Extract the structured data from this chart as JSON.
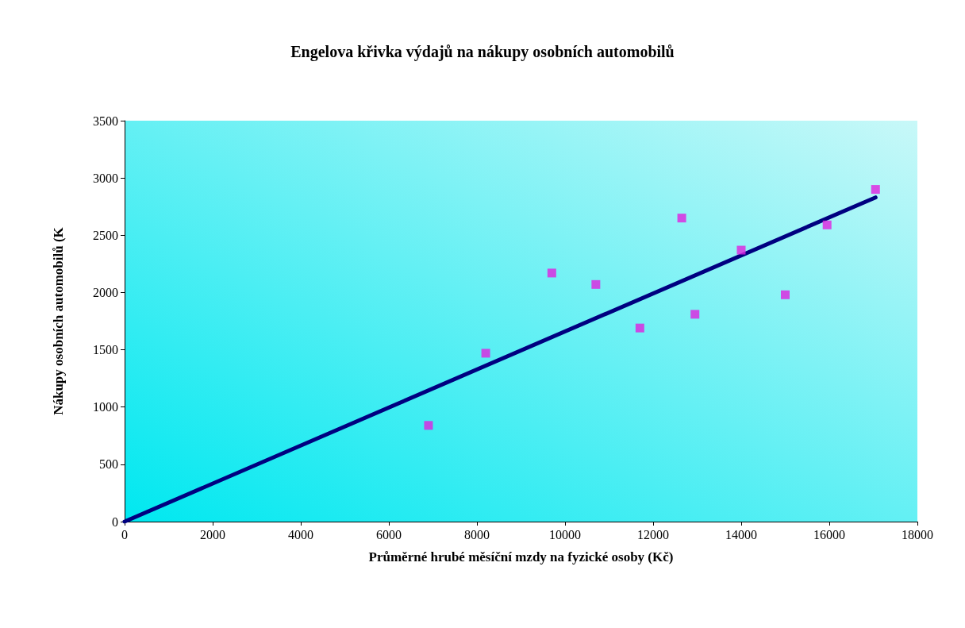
{
  "chart_data": {
    "type": "scatter",
    "title": "Engelova křivka výdajů na nákupy osobních automobilů",
    "xlabel": "Průměrné hrubé měsíční mzdy na fyzické osoby (Kč)",
    "ylabel": "Nákupy osobních automobilů (K",
    "series": [
      {
        "color": "#e020e0",
        "marker": "square",
        "x": [
          6900,
          8200,
          9700,
          10700,
          11700,
          12650,
          12950,
          14000,
          15000,
          15950,
          17050
        ],
        "values": [
          840,
          1470,
          2170,
          2070,
          1690,
          2650,
          1810,
          2370,
          1980,
          2590,
          2900
        ]
      },
      {
        "type": "line",
        "color": "#000080",
        "marker": "none",
        "line_style": "solid",
        "x": [
          0,
          17050
        ],
        "values": [
          0,
          2830
        ]
      }
    ],
    "xlim": [
      0,
      18000
    ],
    "xticks": [
      0,
      2000,
      4000,
      6000,
      8000,
      10000,
      12000,
      14000,
      16000,
      18000
    ],
    "ylim": [
      0,
      3500
    ],
    "yticks": [
      0,
      500,
      1000,
      1500,
      2000,
      2500,
      3000,
      3500
    ],
    "grid": false
  }
}
